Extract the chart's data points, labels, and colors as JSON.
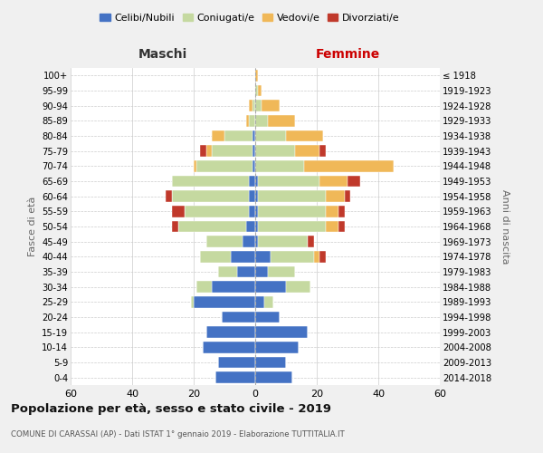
{
  "age_groups": [
    "0-4",
    "5-9",
    "10-14",
    "15-19",
    "20-24",
    "25-29",
    "30-34",
    "35-39",
    "40-44",
    "45-49",
    "50-54",
    "55-59",
    "60-64",
    "65-69",
    "70-74",
    "75-79",
    "80-84",
    "85-89",
    "90-94",
    "95-99",
    "100+"
  ],
  "birth_years": [
    "2014-2018",
    "2009-2013",
    "2004-2008",
    "1999-2003",
    "1994-1998",
    "1989-1993",
    "1984-1988",
    "1979-1983",
    "1974-1978",
    "1969-1973",
    "1964-1968",
    "1959-1963",
    "1954-1958",
    "1949-1953",
    "1944-1948",
    "1939-1943",
    "1934-1938",
    "1929-1933",
    "1924-1928",
    "1919-1923",
    "≤ 1918"
  ],
  "colors": {
    "celibi": "#4472c4",
    "coniugati": "#c5d9a0",
    "vedovi": "#f0b858",
    "divorziati": "#c0392b"
  },
  "maschi": {
    "celibi": [
      13,
      12,
      17,
      16,
      11,
      20,
      14,
      6,
      8,
      4,
      3,
      2,
      2,
      2,
      1,
      1,
      1,
      0,
      0,
      0,
      0
    ],
    "coniugati": [
      0,
      0,
      0,
      0,
      0,
      1,
      5,
      6,
      10,
      12,
      22,
      21,
      25,
      25,
      18,
      13,
      9,
      2,
      1,
      0,
      0
    ],
    "vedovi": [
      0,
      0,
      0,
      0,
      0,
      0,
      0,
      0,
      0,
      0,
      0,
      0,
      0,
      0,
      1,
      2,
      4,
      1,
      1,
      0,
      0
    ],
    "divorziati": [
      0,
      0,
      0,
      0,
      0,
      0,
      0,
      0,
      0,
      0,
      2,
      4,
      2,
      0,
      0,
      2,
      0,
      0,
      0,
      0,
      0
    ]
  },
  "femmine": {
    "celibi": [
      12,
      10,
      14,
      17,
      8,
      3,
      10,
      4,
      5,
      1,
      1,
      1,
      1,
      1,
      0,
      0,
      0,
      0,
      0,
      0,
      0
    ],
    "coniugati": [
      0,
      0,
      0,
      0,
      0,
      3,
      8,
      9,
      14,
      16,
      22,
      22,
      22,
      20,
      16,
      13,
      10,
      4,
      2,
      1,
      0
    ],
    "vedovi": [
      0,
      0,
      0,
      0,
      0,
      0,
      0,
      0,
      2,
      0,
      4,
      4,
      6,
      9,
      29,
      8,
      12,
      9,
      6,
      1,
      1
    ],
    "divorziati": [
      0,
      0,
      0,
      0,
      0,
      0,
      0,
      0,
      2,
      2,
      2,
      2,
      2,
      4,
      0,
      2,
      0,
      0,
      0,
      0,
      0
    ]
  },
  "title": "Popolazione per età, sesso e stato civile - 2019",
  "subtitle": "COMUNE DI CARASSAI (AP) - Dati ISTAT 1° gennaio 2019 - Elaborazione TUTTITALIA.IT",
  "xlabel_left": "Maschi",
  "xlabel_right": "Femmine",
  "ylabel_left": "Fasce di età",
  "ylabel_right": "Anni di nascita",
  "xlim": 60,
  "bg_color": "#f0f0f0",
  "plot_bg_color": "#ffffff",
  "legend_labels": [
    "Celibi/Nubili",
    "Coniugati/e",
    "Vedovi/e",
    "Divorziati/e"
  ]
}
